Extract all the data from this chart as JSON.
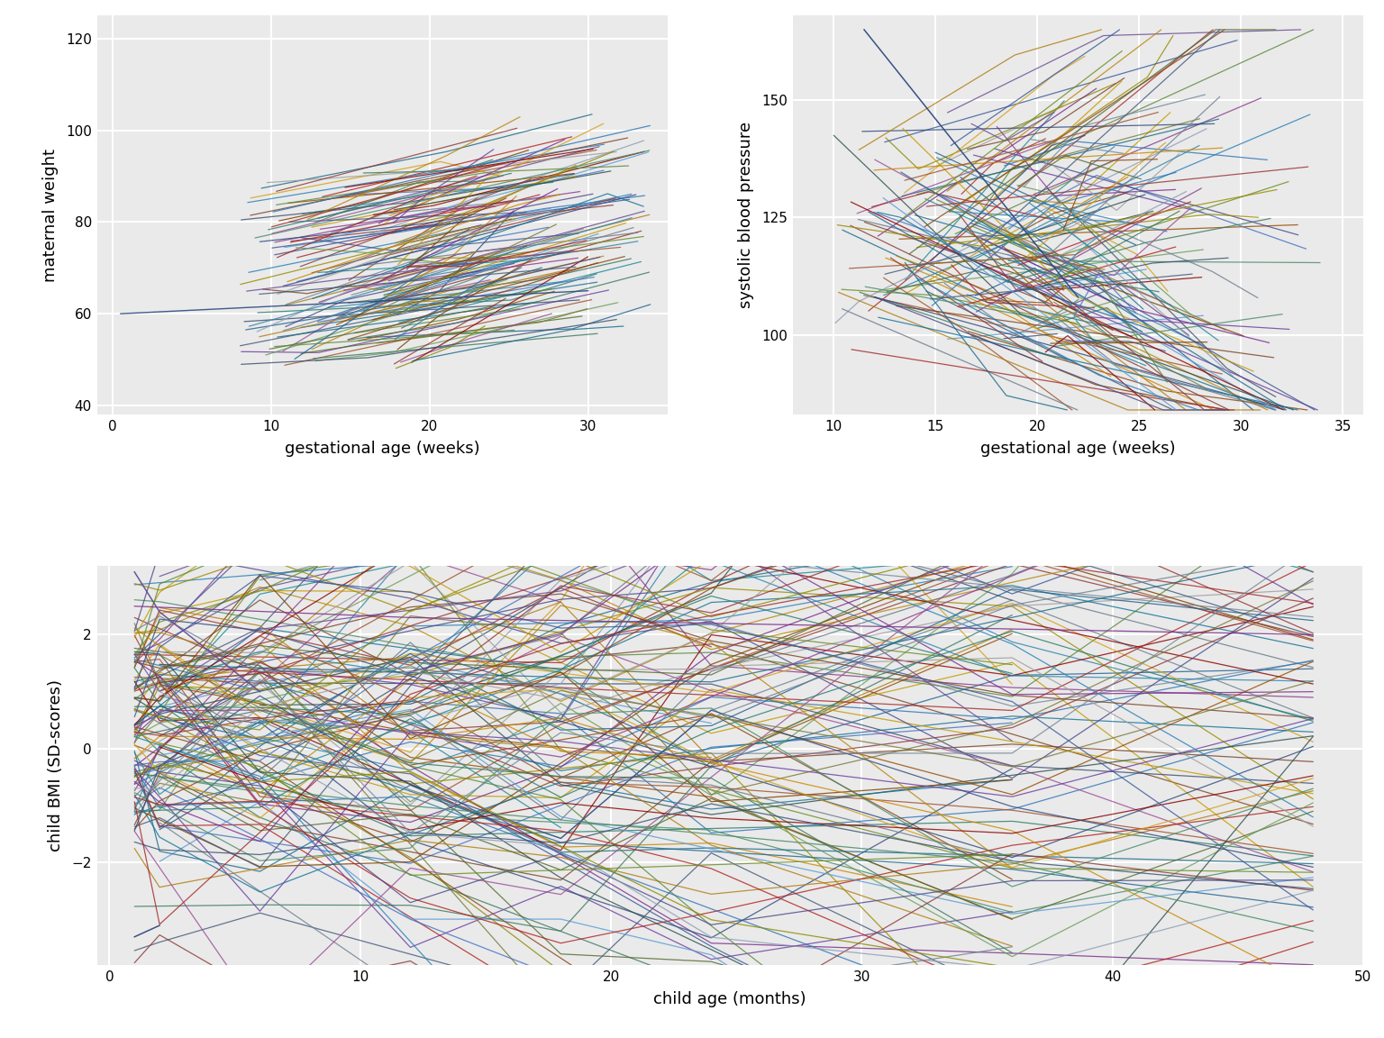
{
  "plot1": {
    "xlabel": "gestational age (weeks)",
    "ylabel": "maternal weight",
    "xlim": [
      -1,
      35
    ],
    "ylim": [
      38,
      125
    ],
    "xticks": [
      0,
      10,
      20,
      30
    ],
    "yticks": [
      40,
      60,
      80,
      100,
      120
    ],
    "n_subjects": 140
  },
  "plot2": {
    "xlabel": "gestational age (weeks)",
    "ylabel": "systolic blood pressure",
    "xlim": [
      8,
      36
    ],
    "ylim": [
      83,
      168
    ],
    "xticks": [
      10,
      15,
      20,
      25,
      30,
      35
    ],
    "yticks": [
      100,
      125,
      150
    ],
    "n_subjects": 160
  },
  "plot3": {
    "xlabel": "child age (months)",
    "ylabel": "child BMI (SD-scores)",
    "xlim": [
      -0.5,
      50
    ],
    "ylim": [
      -3.8,
      3.2
    ],
    "xticks": [
      0,
      10,
      20,
      30,
      40,
      50
    ],
    "yticks": [
      -2,
      0,
      2
    ],
    "n_subjects": 150,
    "timepoints": [
      1,
      2,
      6,
      12,
      18,
      24,
      36,
      48
    ]
  },
  "colors": [
    "#3B5998",
    "#4472C4",
    "#2E75B6",
    "#1F6391",
    "#2980B9",
    "#5B9BD5",
    "#2E86AB",
    "#1A6B8A",
    "#17739A",
    "#1D8A99",
    "#7B3F00",
    "#8B4513",
    "#A0522D",
    "#964B00",
    "#7D4427",
    "#B8860B",
    "#CC8800",
    "#D4A017",
    "#C49A00",
    "#B07D10",
    "#6B3FA0",
    "#7B2D8B",
    "#6A4C93",
    "#8B3A8B",
    "#9B4F96",
    "#5C8A3C",
    "#3D7A5E",
    "#2D7D6B",
    "#4A8C6A",
    "#6B9E5A",
    "#8B0000",
    "#A52A2A",
    "#B22222",
    "#8B3A3A",
    "#993333",
    "#2F4F4F",
    "#4A4A8A",
    "#2E4A7E",
    "#3A5070",
    "#455A7A",
    "#708090",
    "#778899",
    "#6C7A89",
    "#8D9DB6",
    "#9E9E9E",
    "#556B2F",
    "#6B8E23",
    "#8B8B00",
    "#9B8B00",
    "#7A7A3A"
  ],
  "panel_bg": "#EAEAEA",
  "grid_color": "#FFFFFF",
  "fig_bg": "#FFFFFF",
  "label_fontsize": 13,
  "tick_fontsize": 11,
  "line_width": 0.9,
  "line_alpha": 0.82
}
